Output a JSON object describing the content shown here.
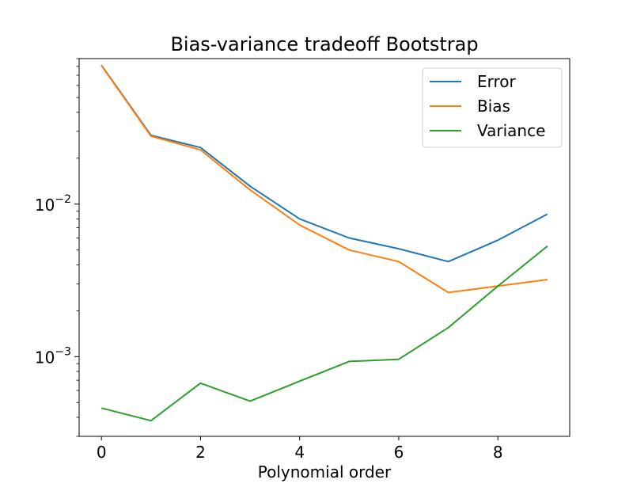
{
  "chart_data": {
    "type": "line",
    "title": "Bias-variance tradeoff Bootstrap",
    "xlabel": "Polynomial order",
    "ylabel": "",
    "x": [
      0,
      1,
      2,
      3,
      4,
      5,
      6,
      7,
      8,
      9
    ],
    "xlim": [
      -0.45,
      9.45
    ],
    "ylim": [
      0.0003,
      0.09
    ],
    "yscale": "log",
    "xticks": [
      0,
      2,
      4,
      6,
      8
    ],
    "xtick_labels": [
      "0",
      "2",
      "4",
      "6",
      "8"
    ],
    "yticks": [
      {
        "value": 0.01,
        "base": "10",
        "exp": "−2"
      },
      {
        "value": 0.001,
        "base": "10",
        "exp": "−3"
      }
    ],
    "grid": false,
    "legend_position": "top-right",
    "series": [
      {
        "name": "Error",
        "color": "#1f77b4",
        "values": [
          0.0815,
          0.0283,
          0.0235,
          0.0131,
          0.008,
          0.006,
          0.0051,
          0.0042,
          0.0058,
          0.0086
        ]
      },
      {
        "name": "Bias",
        "color": "#ff7f0e",
        "values": [
          0.081,
          0.0279,
          0.0227,
          0.0124,
          0.0073,
          0.005,
          0.0042,
          0.00263,
          0.0029,
          0.0032
        ]
      },
      {
        "name": "Variance",
        "color": "#2ca02c",
        "values": [
          0.00046,
          0.00038,
          0.00067,
          0.00051,
          0.00069,
          0.00093,
          0.00096,
          0.00155,
          0.0029,
          0.0053
        ]
      }
    ]
  }
}
